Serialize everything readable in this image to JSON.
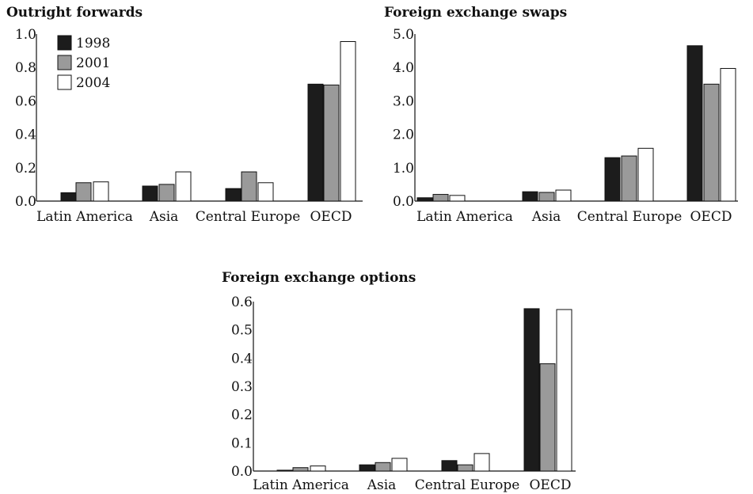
{
  "colors": {
    "s1998": "#1c1c1c",
    "s2001": "#9a9a9a",
    "s2004": "#ffffff",
    "stroke": "#111111"
  },
  "chart_data": [
    {
      "type": "bar",
      "title": "Outright forwards",
      "categories": [
        "Latin America",
        "Asia",
        "Central Europe",
        "OECD"
      ],
      "series": [
        {
          "name": "1998",
          "values": [
            0.05,
            0.09,
            0.075,
            0.7
          ]
        },
        {
          "name": "2001",
          "values": [
            0.11,
            0.1,
            0.175,
            0.695
          ]
        },
        {
          "name": "2004",
          "values": [
            0.115,
            0.175,
            0.11,
            0.955
          ]
        }
      ],
      "ylim": [
        0,
        1.0
      ],
      "yticks": [
        "0.0",
        "0.2",
        "0.4",
        "0.6",
        "0.8",
        "1.0"
      ],
      "legend": "top-left",
      "grid": false
    },
    {
      "type": "bar",
      "title": "Foreign exchange swaps",
      "categories": [
        "Latin America",
        "Asia",
        "Central Europe",
        "OECD"
      ],
      "series": [
        {
          "name": "1998",
          "values": [
            0.1,
            0.28,
            1.3,
            4.65
          ]
        },
        {
          "name": "2001",
          "values": [
            0.2,
            0.26,
            1.35,
            3.5
          ]
        },
        {
          "name": "2004",
          "values": [
            0.17,
            0.33,
            1.58,
            3.97
          ]
        }
      ],
      "ylim": [
        0,
        5.0
      ],
      "yticks": [
        "0.0",
        "1.0",
        "2.0",
        "3.0",
        "4.0",
        "5.0"
      ],
      "grid": false
    },
    {
      "type": "bar",
      "title": "Foreign exchange options",
      "categories": [
        "Latin America",
        "Asia",
        "Central Europe",
        "OECD"
      ],
      "series": [
        {
          "name": "1998",
          "values": [
            0.003,
            0.022,
            0.037,
            0.575
          ]
        },
        {
          "name": "2001",
          "values": [
            0.012,
            0.03,
            0.022,
            0.38
          ]
        },
        {
          "name": "2004",
          "values": [
            0.018,
            0.045,
            0.062,
            0.572
          ]
        }
      ],
      "ylim": [
        0,
        0.6
      ],
      "yticks": [
        "0.0",
        "0.1",
        "0.2",
        "0.3",
        "0.4",
        "0.5",
        "0.6"
      ],
      "grid": false
    }
  ]
}
